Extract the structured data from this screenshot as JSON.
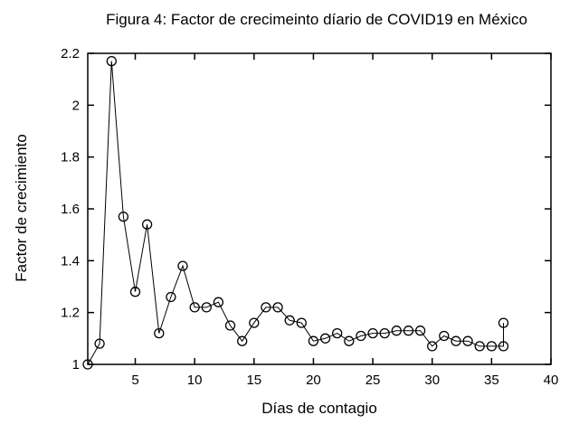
{
  "figure": {
    "background": "#ffffff",
    "foreground": "#000000"
  },
  "chart_data": {
    "type": "line",
    "title": "Figura 4: Factor de crecimeinto díario de COVID19 en México",
    "xlabel": "Días de contagio",
    "ylabel": "Factor de crecimiento",
    "xlim": [
      1,
      40
    ],
    "ylim": [
      1.0,
      2.2
    ],
    "xticks": [
      5,
      10,
      15,
      20,
      25,
      30,
      35,
      40
    ],
    "yticks": [
      1,
      1.2,
      1.4,
      1.6,
      1.8,
      2,
      2.2
    ],
    "grid": false,
    "legend": "none",
    "marker": "open-circle",
    "line_color": "#000000",
    "series": [
      {
        "name": "factor-de-crecimiento",
        "points": [
          [
            1,
            1.0
          ],
          [
            2,
            1.08
          ],
          [
            3,
            2.17
          ],
          [
            4,
            1.57
          ],
          [
            5,
            1.28
          ],
          [
            6,
            1.54
          ],
          [
            7,
            1.12
          ],
          [
            8,
            1.26
          ],
          [
            9,
            1.38
          ],
          [
            10,
            1.22
          ],
          [
            11,
            1.22
          ],
          [
            12,
            1.24
          ],
          [
            13,
            1.15
          ],
          [
            14,
            1.09
          ],
          [
            15,
            1.16
          ],
          [
            16,
            1.22
          ],
          [
            17,
            1.22
          ],
          [
            18,
            1.17
          ],
          [
            19,
            1.16
          ],
          [
            20,
            1.09
          ],
          [
            21,
            1.1
          ],
          [
            22,
            1.12
          ],
          [
            23,
            1.09
          ],
          [
            24,
            1.11
          ],
          [
            25,
            1.12
          ],
          [
            26,
            1.12
          ],
          [
            27,
            1.13
          ],
          [
            28,
            1.13
          ],
          [
            29,
            1.13
          ],
          [
            30,
            1.07
          ],
          [
            31,
            1.11
          ],
          [
            32,
            1.09
          ],
          [
            33,
            1.09
          ],
          [
            34,
            1.07
          ],
          [
            35,
            1.07
          ],
          [
            36,
            1.07
          ],
          [
            36,
            1.16
          ]
        ]
      }
    ]
  }
}
